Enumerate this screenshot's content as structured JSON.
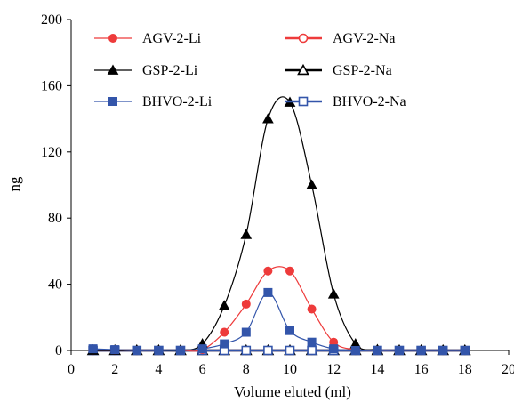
{
  "chart_data": {
    "type": "line",
    "xlabel": "Volume eluted (ml)",
    "ylabel": "ng",
    "xlim": [
      0,
      20
    ],
    "ylim": [
      0,
      200
    ],
    "xticks": [
      0,
      2,
      4,
      6,
      8,
      10,
      12,
      14,
      16,
      18,
      20
    ],
    "yticks": [
      0,
      40,
      80,
      120,
      160,
      200
    ],
    "grid": false,
    "legend_placement": "top-left, three rows by two columns",
    "x": [
      1,
      2,
      3,
      4,
      5,
      6,
      7,
      8,
      9,
      10,
      11,
      12,
      13,
      14,
      15,
      16,
      17,
      18
    ],
    "series": [
      {
        "name": "AGV-2-Li",
        "color": "#ee3b3b",
        "marker": "filled-circle",
        "values": [
          0,
          0,
          0,
          0,
          0,
          0.5,
          11,
          28,
          48,
          48,
          25,
          5,
          0.5,
          0,
          0,
          0,
          0,
          0
        ]
      },
      {
        "name": "AGV-2-Na",
        "color": "#ee3b3b",
        "marker": "open-circle",
        "values": [
          0,
          0,
          0,
          0,
          0,
          0,
          0,
          0,
          0,
          0,
          0,
          0,
          0,
          0,
          0,
          0,
          0,
          0
        ]
      },
      {
        "name": "GSP-2-Li",
        "color": "#000000",
        "marker": "filled-triangle",
        "values": [
          0,
          0,
          0,
          0,
          0,
          4,
          27,
          70,
          140,
          150,
          100,
          34,
          4,
          0.5,
          0,
          0,
          0,
          0
        ]
      },
      {
        "name": "GSP-2-Na",
        "color": "#000000",
        "marker": "open-triangle",
        "values": [
          0,
          0,
          0,
          0,
          0,
          0,
          0,
          0,
          0,
          0,
          0,
          0,
          0,
          0,
          0,
          0,
          0,
          0
        ]
      },
      {
        "name": "BHVO-2-Li",
        "color": "#3355aa",
        "marker": "filled-square",
        "values": [
          1,
          0.5,
          0,
          0,
          0,
          1,
          4,
          11,
          35,
          12,
          5,
          1,
          0,
          0,
          0,
          0,
          0,
          0
        ]
      },
      {
        "name": "BHVO-2-Na",
        "color": "#3355aa",
        "marker": "open-square",
        "values": [
          0,
          0,
          0,
          0,
          0,
          0,
          0,
          0,
          0,
          0,
          0,
          0,
          0,
          0,
          0,
          0,
          0,
          0
        ]
      }
    ]
  }
}
